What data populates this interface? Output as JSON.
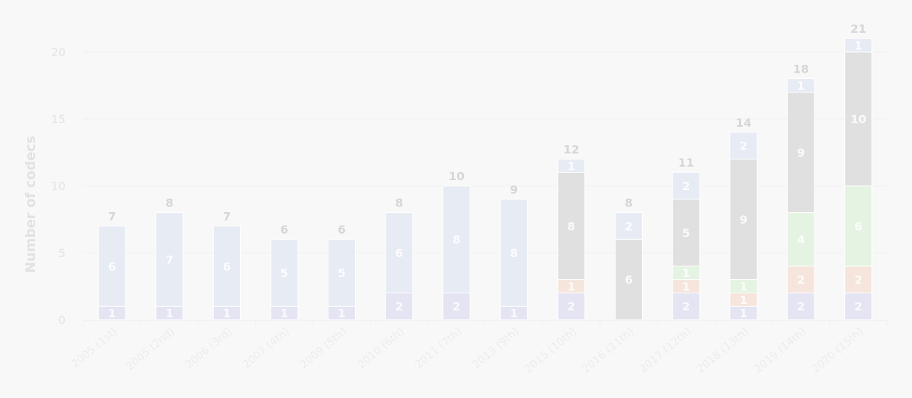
{
  "chart_data": {
    "type": "bar",
    "stacked": true,
    "ylabel": "Number of codecs",
    "xlabel": "",
    "ylim": [
      0,
      21
    ],
    "yticks": [
      0,
      5,
      10,
      15,
      20
    ],
    "grid": true,
    "categories": [
      "2005 (1st)",
      "2005 (2nd)",
      "2006 (3rd)",
      "2007 (4th)",
      "2009 (5th)",
      "2010 (6th)",
      "2011 (7th)",
      "2013 (9th)",
      "2015 (10th)",
      "2016 (11th)",
      "2017 (12th)",
      "2018 (13th)",
      "2019 (14th)",
      "2020 (15th)"
    ],
    "totals": [
      7,
      8,
      7,
      6,
      6,
      8,
      10,
      9,
      12,
      8,
      11,
      14,
      18,
      21
    ],
    "series": [
      {
        "color": "#e4e4f3",
        "values": [
          1,
          1,
          1,
          1,
          1,
          2,
          2,
          1,
          2,
          0,
          2,
          1,
          2,
          2
        ]
      },
      {
        "color": "#f5e5dc",
        "values": [
          0,
          0,
          0,
          0,
          0,
          0,
          0,
          0,
          1,
          0,
          1,
          1,
          2,
          2
        ]
      },
      {
        "color": "#e5f3e2",
        "values": [
          0,
          0,
          0,
          0,
          0,
          0,
          0,
          0,
          0,
          0,
          1,
          1,
          4,
          6
        ]
      },
      {
        "color": "#e0e0e0",
        "values": [
          0,
          0,
          0,
          0,
          0,
          0,
          0,
          0,
          8,
          6,
          5,
          9,
          9,
          10
        ]
      },
      {
        "color": "#e6ebf4",
        "values": [
          6,
          7,
          6,
          5,
          5,
          6,
          8,
          8,
          1,
          2,
          2,
          2,
          1,
          1
        ]
      }
    ]
  }
}
